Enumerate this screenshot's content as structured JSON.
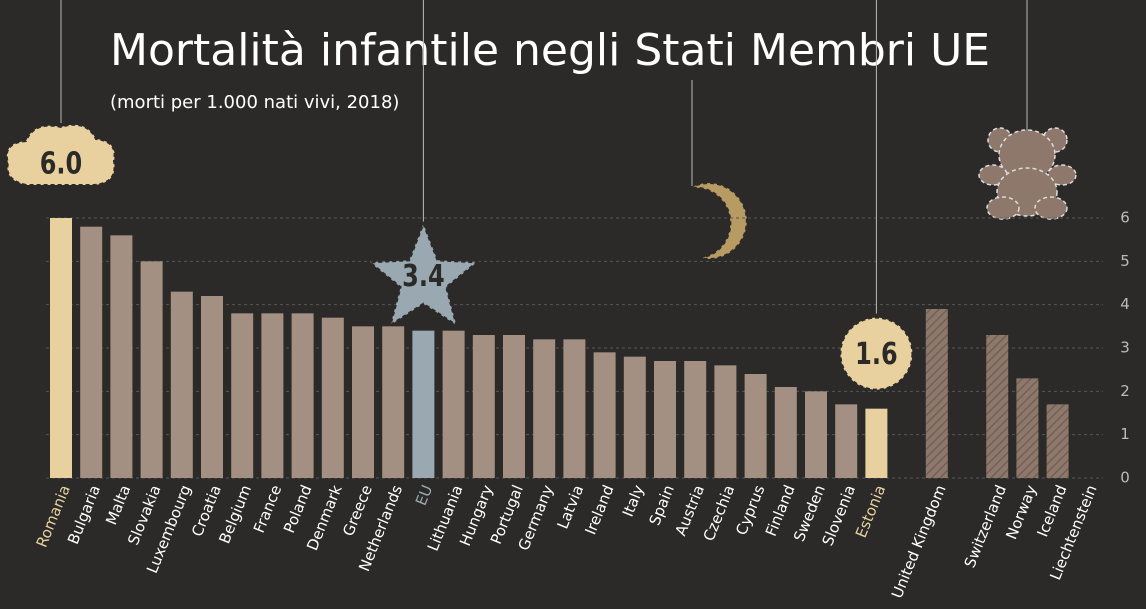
{
  "chart_data": {
    "type": "bar",
    "title": "Mortalità infantile negli Stati Membri UE",
    "subtitle": "(morti per 1.000 nati vivi, 2018)",
    "categories": [
      "Romania",
      "Bulgaria",
      "Malta",
      "Slovakia",
      "Luxembourg",
      "Croatia",
      "Belgium",
      "France",
      "Poland",
      "Denmark",
      "Greece",
      "Netherlands",
      "EU",
      "Lithuania",
      "Hungary",
      "Portugal",
      "Germany",
      "Latvia",
      "Ireland",
      "Italy",
      "Spain",
      "Austria",
      "Czechia",
      "Cyprus",
      "Finland",
      "Sweden",
      "Slovenia",
      "Estonia",
      null,
      "United Kingdom",
      null,
      "Switzerland",
      "Norway",
      "Iceland",
      "Liechtenstein"
    ],
    "values": [
      6.0,
      5.8,
      5.6,
      5.0,
      4.3,
      4.2,
      3.8,
      3.8,
      3.8,
      3.7,
      3.5,
      3.5,
      3.4,
      3.4,
      3.3,
      3.3,
      3.2,
      3.2,
      2.9,
      2.8,
      2.7,
      2.7,
      2.6,
      2.4,
      2.1,
      2.0,
      1.7,
      1.6,
      null,
      3.9,
      null,
      3.3,
      2.3,
      1.7,
      null
    ],
    "value_labels": [
      "6.0",
      null,
      null,
      null,
      null,
      null,
      null,
      null,
      null,
      null,
      null,
      null,
      "3.4",
      null,
      null,
      null,
      null,
      null,
      null,
      null,
      null,
      null,
      null,
      null,
      null,
      null,
      null,
      "1.6",
      null,
      null,
      null,
      null,
      null,
      null,
      null
    ],
    "colors": [
      "#e9d19f",
      "#a39082",
      "#a39082",
      "#a39082",
      "#a39082",
      "#a39082",
      "#a39082",
      "#a39082",
      "#a39082",
      "#a39082",
      "#a39082",
      "#a39082",
      "#9aa9b1",
      "#a39082",
      "#a39082",
      "#a39082",
      "#a39082",
      "#a39082",
      "#a39082",
      "#a39082",
      "#a39082",
      "#a39082",
      "#a39082",
      "#a39082",
      "#a39082",
      "#a39082",
      "#a39082",
      "#e9d19f",
      null,
      "#8d786b",
      null,
      "#8d786b",
      "#8d786b",
      "#8d786b",
      "#8d786b"
    ],
    "hatched": [
      false,
      false,
      false,
      false,
      false,
      false,
      false,
      false,
      false,
      false,
      false,
      false,
      false,
      false,
      false,
      false,
      false,
      false,
      false,
      false,
      false,
      false,
      false,
      false,
      false,
      false,
      false,
      false,
      false,
      true,
      false,
      true,
      true,
      true,
      true
    ],
    "label_colors": [
      "#e9d19f",
      "#ffffff",
      "#ffffff",
      "#ffffff",
      "#ffffff",
      "#ffffff",
      "#ffffff",
      "#ffffff",
      "#ffffff",
      "#ffffff",
      "#ffffff",
      "#ffffff",
      "#9aa9b1",
      "#ffffff",
      "#ffffff",
      "#ffffff",
      "#ffffff",
      "#ffffff",
      "#ffffff",
      "#ffffff",
      "#ffffff",
      "#ffffff",
      "#ffffff",
      "#ffffff",
      "#ffffff",
      "#ffffff",
      "#ffffff",
      "#e9d19f",
      null,
      "#ffffff",
      null,
      "#ffffff",
      "#ffffff",
      "#ffffff",
      "#ffffff"
    ],
    "ylim": [
      0,
      6
    ],
    "yticks": [
      0,
      1,
      2,
      3,
      4,
      5,
      6
    ],
    "grid": true
  }
}
